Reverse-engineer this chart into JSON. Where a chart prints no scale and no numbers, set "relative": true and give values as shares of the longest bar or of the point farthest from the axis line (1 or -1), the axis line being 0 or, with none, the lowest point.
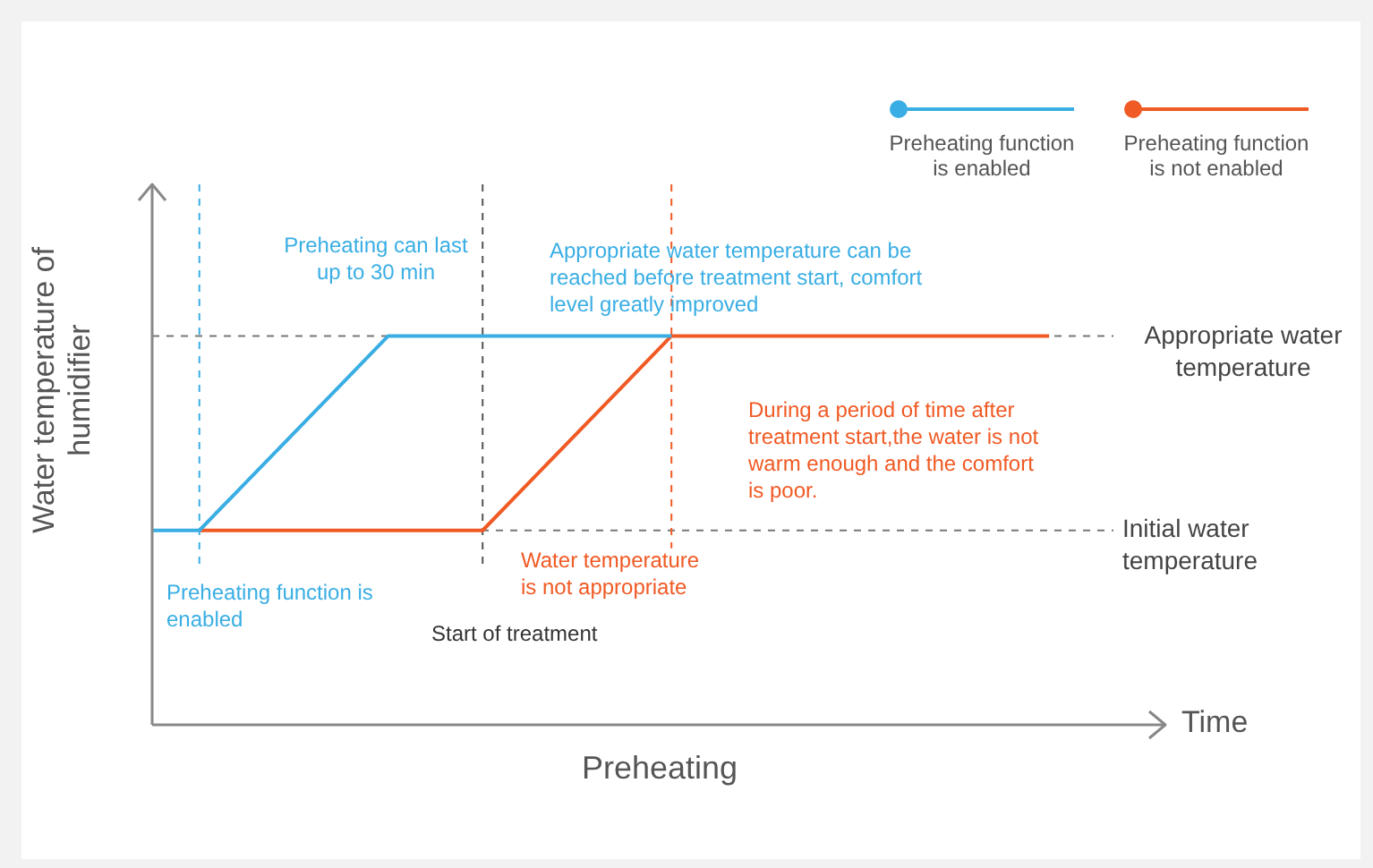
{
  "chart_data": {
    "type": "line",
    "relative": true,
    "title": "Preheating",
    "xlabel": "Time",
    "ylabel": "Water temperature of humidifier",
    "legend": "top right",
    "marker": "none",
    "line_style": "solid",
    "categories": [
      null,
      null,
      null,
      null,
      null,
      null,
      null,
      null,
      null,
      null,
      null,
      null,
      null,
      null,
      null,
      null,
      null,
      null,
      null,
      null
    ],
    "series": [
      {
        "name": "Preheating function is enabled",
        "color": "#3aaee4",
        "values": [
          0.5,
          0.5,
          0.625,
          0.75,
          0.875,
          1,
          1,
          1,
          1,
          1,
          1,
          1,
          null,
          null,
          null,
          null,
          null,
          null,
          null,
          null
        ]
      },
      {
        "name": "Preheating function is not enabled",
        "color": "#f05a24",
        "values": [
          null,
          0.5,
          0.5,
          0.5,
          0.5,
          0.5,
          0.5,
          0.5,
          0.625,
          0.75,
          0.875,
          1,
          1,
          1,
          1,
          1,
          1,
          1,
          1,
          1
        ]
      }
    ],
    "ref_lines": [
      {
        "axis": "y",
        "value": 1,
        "label": "Appropriate water temperature",
        "color": "#777777",
        "line_style": "dashed"
      },
      {
        "axis": "y",
        "value": 0.5,
        "label": "Initial water temperature",
        "color": "#777777",
        "line_style": "dashed"
      }
    ],
    "annotations": [
      "Preheating can last up to 30 min",
      "Appropriate water temperature can be reached before treatment start, comfort level greatly improved",
      "During a period of time after treatment start,the water is not warm enough and the comfort is poor.",
      "Preheating function is enabled",
      "Water temperature is not appropriate",
      "Start of treatment"
    ]
  }
}
